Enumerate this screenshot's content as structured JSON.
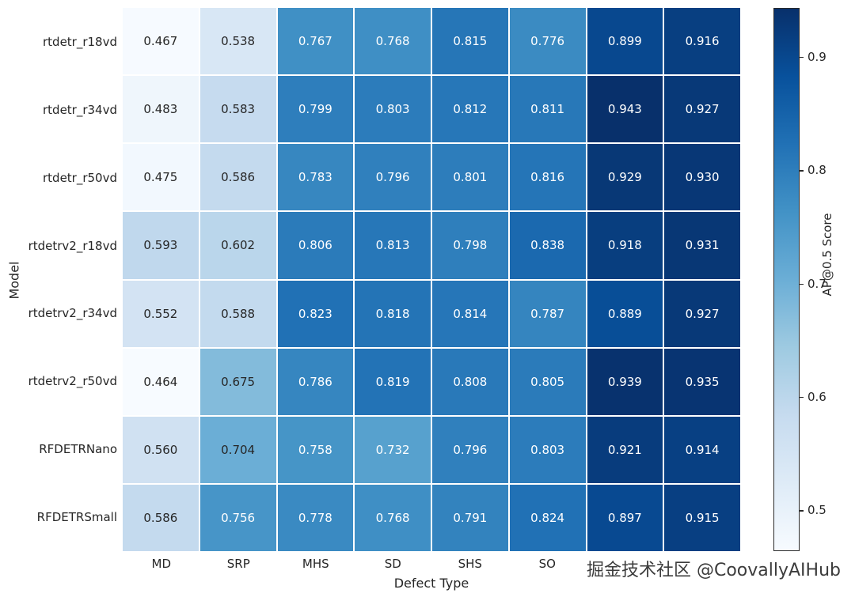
{
  "chart_data": {
    "type": "heatmap",
    "xlabel": "Defect Type",
    "ylabel": "Model",
    "colorbar_label": "AP@0.5 Score",
    "colormap": "Blues",
    "vmin": 0.464,
    "vmax": 0.943,
    "colorbar_ticks": [
      0.5,
      0.6,
      0.7,
      0.8,
      0.9
    ],
    "x_categories": [
      "MD",
      "SRP",
      "MHS",
      "SD",
      "SHS",
      "SO",
      "",
      ""
    ],
    "y_categories": [
      "rtdetr_r18vd",
      "rtdetr_r34vd",
      "rtdetr_r50vd",
      "rtdetrv2_r18vd",
      "rtdetrv2_r34vd",
      "rtdetrv2_r50vd",
      "RFDETRNano",
      "RFDETRSmall"
    ],
    "values": [
      [
        0.467,
        0.538,
        0.767,
        0.768,
        0.815,
        0.776,
        0.899,
        0.916
      ],
      [
        0.483,
        0.583,
        0.799,
        0.803,
        0.812,
        0.811,
        0.943,
        0.927
      ],
      [
        0.475,
        0.586,
        0.783,
        0.796,
        0.801,
        0.816,
        0.929,
        0.93
      ],
      [
        0.593,
        0.602,
        0.806,
        0.813,
        0.798,
        0.838,
        0.918,
        0.931
      ],
      [
        0.552,
        0.588,
        0.823,
        0.818,
        0.814,
        0.787,
        0.889,
        0.927
      ],
      [
        0.464,
        0.675,
        0.786,
        0.819,
        0.808,
        0.805,
        0.939,
        0.935
      ],
      [
        0.56,
        0.704,
        0.758,
        0.732,
        0.796,
        0.803,
        0.921,
        0.914
      ],
      [
        0.586,
        0.756,
        0.778,
        0.768,
        0.791,
        0.824,
        0.897,
        0.915
      ]
    ],
    "grid": "white gridlines between cells",
    "legend_position": "colorbar-right"
  },
  "watermark": "掘金技术社区 @CoovallyAIHub"
}
